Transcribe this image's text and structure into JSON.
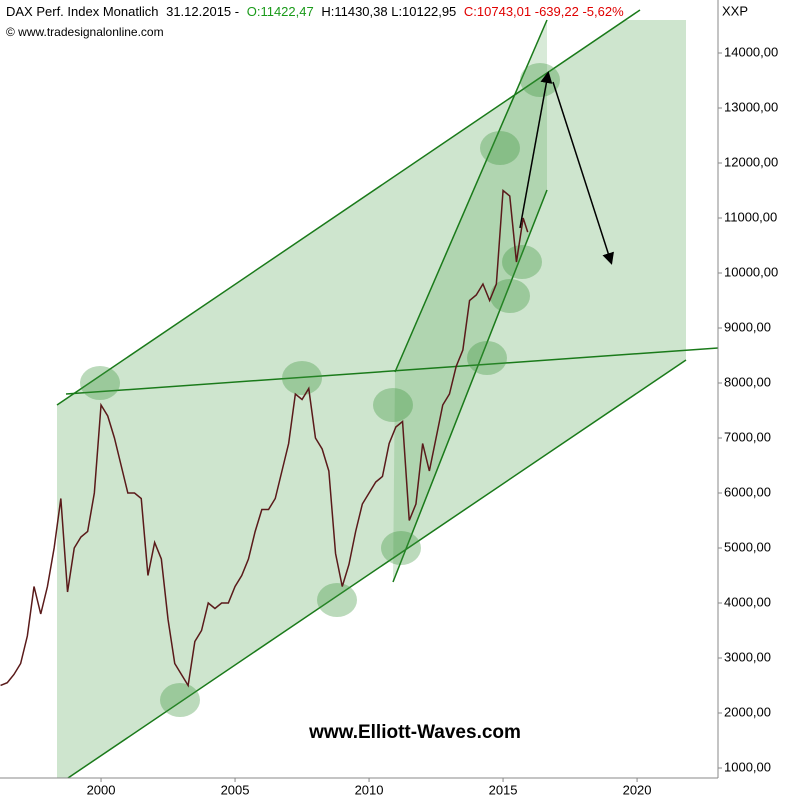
{
  "chart_data": {
    "type": "line",
    "title": "DAX Perf. Index Monatlich",
    "date": "31.12.2015 -",
    "open": "O:11422,47",
    "high_low": "H:11430,38 L:10122,95",
    "close_change": "C:10743,01 -639,22 -5,62%",
    "source": "© www.tradesignalonline.com",
    "y_axis_label": "XXP",
    "watermark": "www.Elliott-Waves.com",
    "xlim": [
      1996.23,
      2023.02
    ],
    "ylim": [
      818,
      14600
    ],
    "xticks": [
      2000,
      2005,
      2010,
      2015,
      2020
    ],
    "yticks": [
      {
        "value": 1000,
        "label": "1000,00"
      },
      {
        "value": 2000,
        "label": "2000,00"
      },
      {
        "value": 3000,
        "label": "3000,00"
      },
      {
        "value": 4000,
        "label": "4000,00"
      },
      {
        "value": 5000,
        "label": "5000,00"
      },
      {
        "value": 6000,
        "label": "6000,00"
      },
      {
        "value": 7000,
        "label": "7000,00"
      },
      {
        "value": 8000,
        "label": "8000,00"
      },
      {
        "value": 9000,
        "label": "9000,00"
      },
      {
        "value": 10000,
        "label": "10000,00"
      },
      {
        "value": 11000,
        "label": "11000,00"
      },
      {
        "value": 12000,
        "label": "12000,00"
      },
      {
        "value": 13000,
        "label": "13000,00"
      },
      {
        "value": 14000,
        "label": "14000,00"
      }
    ],
    "grid": false,
    "series": [
      {
        "color": "#5a1a1a",
        "x": [
          1996.25,
          1996.5,
          1996.75,
          1997.0,
          1997.25,
          1997.5,
          1997.75,
          1998.0,
          1998.25,
          1998.5,
          1998.75,
          1999.0,
          1999.25,
          1999.5,
          1999.75,
          2000.0,
          2000.25,
          2000.5,
          2000.75,
          2001.0,
          2001.25,
          2001.5,
          2001.75,
          2002.0,
          2002.25,
          2002.5,
          2002.75,
          2003.0,
          2003.25,
          2003.5,
          2003.75,
          2004.0,
          2004.25,
          2004.5,
          2004.75,
          2005.0,
          2005.25,
          2005.5,
          2005.75,
          2006.0,
          2006.25,
          2006.5,
          2006.75,
          2007.0,
          2007.25,
          2007.5,
          2007.75,
          2008.0,
          2008.25,
          2008.5,
          2008.75,
          2009.0,
          2009.25,
          2009.5,
          2009.75,
          2010.0,
          2010.25,
          2010.5,
          2010.75,
          2011.0,
          2011.25,
          2011.5,
          2011.75,
          2012.0,
          2012.25,
          2012.5,
          2012.75,
          2013.0,
          2013.25,
          2013.5,
          2013.75,
          2014.0,
          2014.25,
          2014.5,
          2014.75,
          2015.0,
          2015.25,
          2015.5,
          2015.75,
          2015.92
        ],
        "values": [
          2500,
          2550,
          2700,
          2900,
          3400,
          4300,
          3800,
          4300,
          5000,
          5900,
          4200,
          5000,
          5200,
          5300,
          6000,
          7600,
          7400,
          7000,
          6500,
          6000,
          6000,
          5900,
          4500,
          5100,
          4800,
          3700,
          2900,
          2700,
          2500,
          3300,
          3500,
          4000,
          3900,
          4000,
          4000,
          4300,
          4500,
          4800,
          5300,
          5700,
          5700,
          5900,
          6400,
          6900,
          7800,
          7700,
          7900,
          7000,
          6800,
          6400,
          4900,
          4300,
          4700,
          5300,
          5800,
          6000,
          6200,
          6300,
          6900,
          7200,
          7300,
          5500,
          5800,
          6900,
          6400,
          7000,
          7600,
          7800,
          8300,
          8600,
          9500,
          9600,
          9800,
          9500,
          9800,
          11500,
          11400,
          10200,
          11000,
          10743
        ]
      }
    ]
  }
}
